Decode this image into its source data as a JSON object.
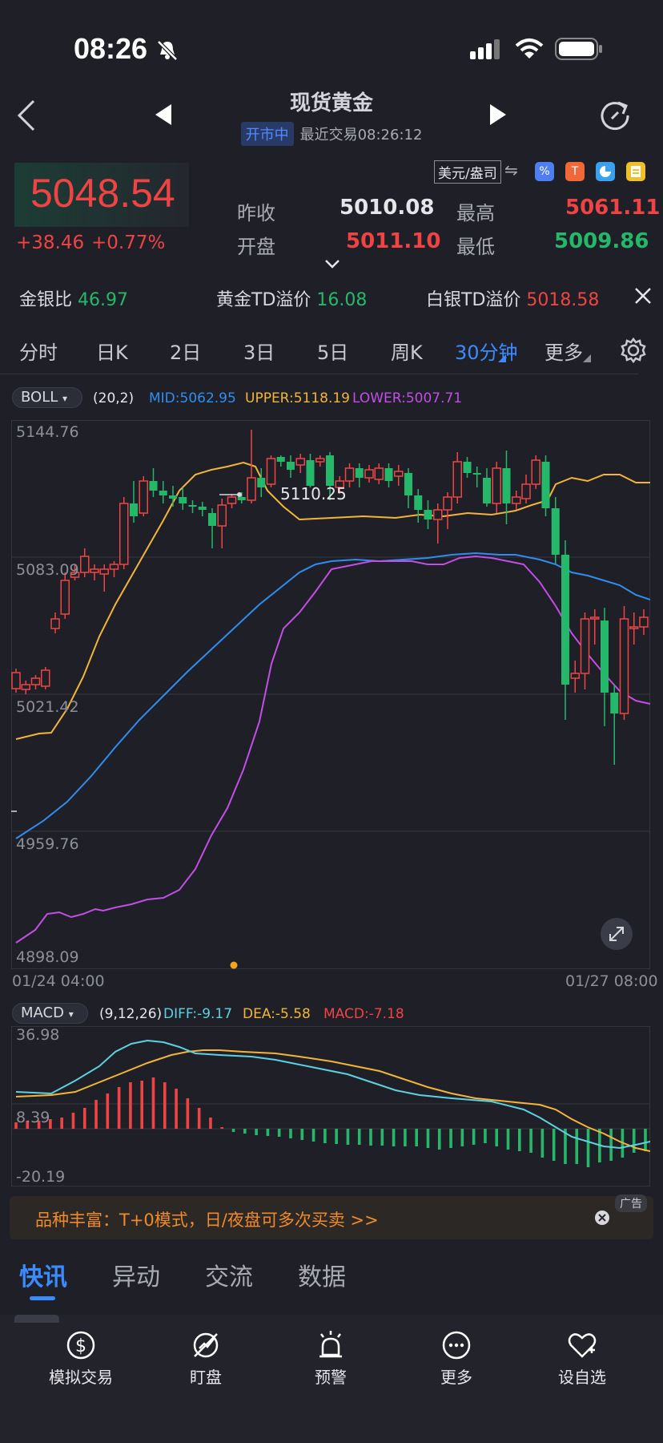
{
  "status": {
    "time": "08:26"
  },
  "header": {
    "title": "现货黄金",
    "badge": "开市中",
    "last_trade": "最近交易08:26:12"
  },
  "currency_toggle": "美元/盎司",
  "price": {
    "last": "5048.54",
    "change": "+38.46",
    "change_pct": "+0.77%"
  },
  "stats": {
    "prev_close_label": "昨收",
    "prev_close": "5010.08",
    "open_label": "开盘",
    "open": "5011.10",
    "high_label": "最高",
    "high": "5061.11",
    "low_label": "最低",
    "low": "5009.86"
  },
  "ratios": {
    "gold_silver_label": "金银比",
    "gold_silver": "46.97",
    "gold_td_label": "黄金TD溢价",
    "gold_td": "16.08",
    "silver_td_label": "白银TD溢价",
    "silver_td": "5018.58"
  },
  "period_tabs": [
    "分时",
    "日K",
    "2日",
    "3日",
    "5日",
    "周K",
    "30分钟",
    "更多"
  ],
  "active_tab": "30分钟",
  "boll": {
    "name": "BOLL",
    "params": "(20,2)",
    "mid": "MID:5062.95",
    "upper": "UPPER:5118.19",
    "lower": "LOWER:5007.71"
  },
  "macd": {
    "name": "MACD",
    "params": "(9,12,26)",
    "diff": "DIFF:-9.17",
    "dea": "DEA:-5.58",
    "macd": "MACD:-7.18"
  },
  "chart_data": {
    "type": "candlestick",
    "y_ticks": [
      "5144.76",
      "5083.09",
      "5021.42",
      "4959.76",
      "4898.09"
    ],
    "ylim": [
      4898.09,
      5144.76
    ],
    "x_labels": [
      "01/24 04:00",
      "01/27 08:00"
    ],
    "max_marker": "5110.25",
    "macd_y_ticks": [
      "36.98",
      "8.39",
      "-20.19"
    ],
    "colors": {
      "up": "#f04444",
      "down": "#25b86a",
      "mid": "#2f8df0",
      "upper": "#f2b53a",
      "lower": "#c24ee6",
      "diff": "#5fd0e0",
      "dea": "#f2b53a"
    }
  },
  "ad": {
    "text": "品种丰富：T+0模式，日/夜盘可多次买卖 >>",
    "tag": "广告"
  },
  "news_tabs": [
    "快讯",
    "异动",
    "交流",
    "数据"
  ],
  "bottom_nav": [
    "模拟交易",
    "盯盘",
    "预警",
    "更多",
    "设自选"
  ]
}
